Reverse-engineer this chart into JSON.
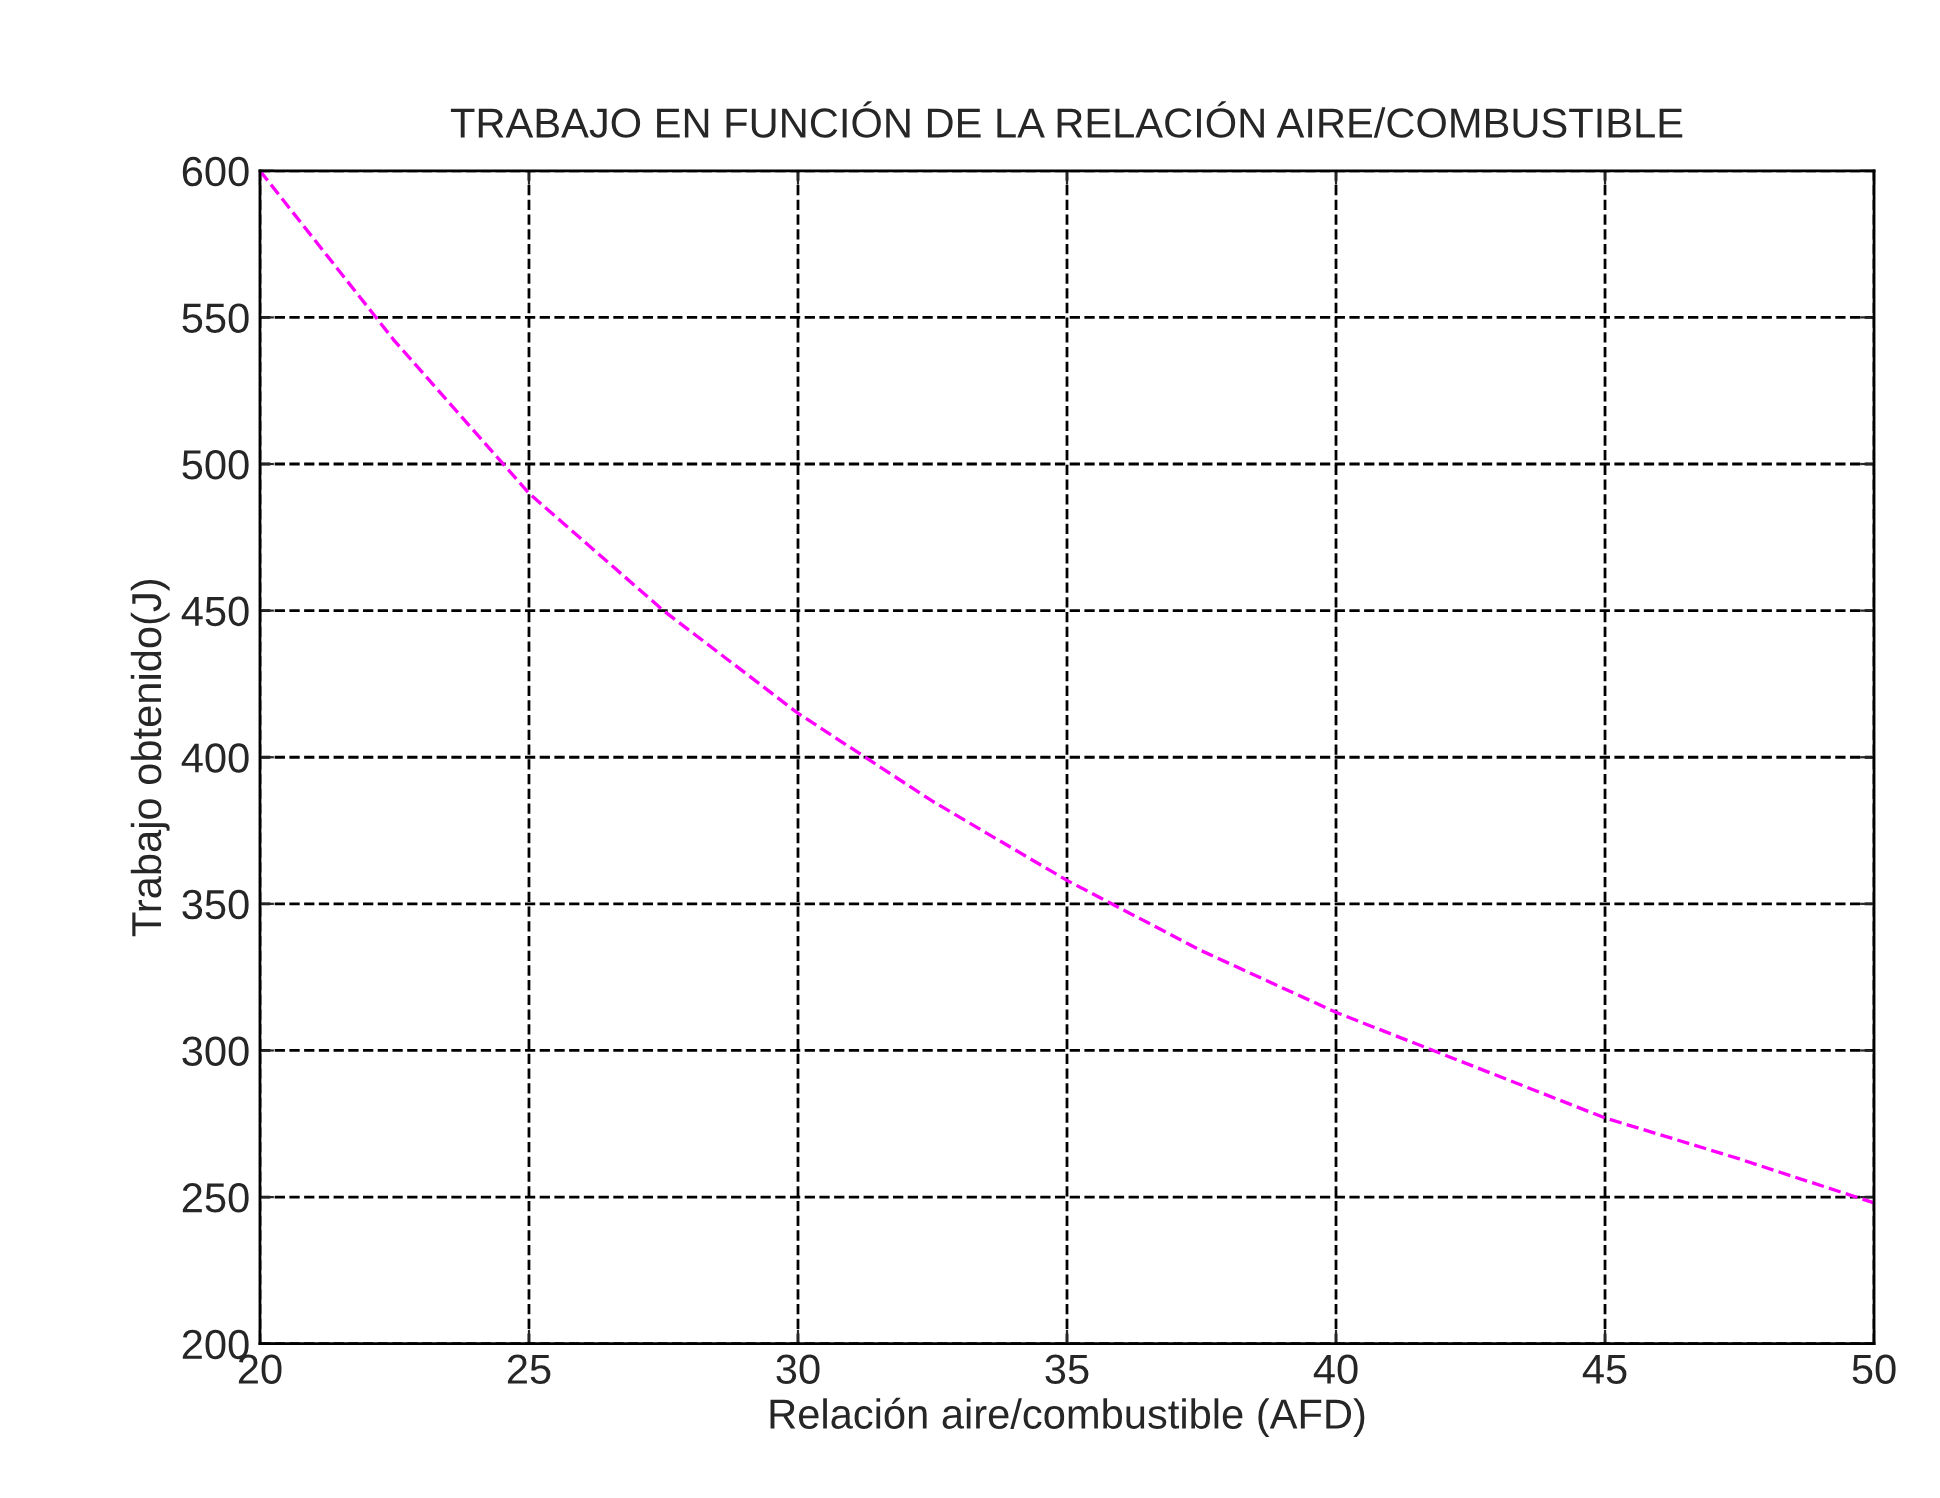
{
  "chart_data": {
    "type": "line",
    "title": "TRABAJO EN FUNCIÓN DE LA RELACIÓN AIRE/COMBUSTIBLE",
    "xlabel": "Relación aire/combustible (AFD)",
    "ylabel": "Trabajo obtenido(J)",
    "x": [
      20,
      22.5,
      25,
      27.5,
      30,
      32.5,
      35,
      37.5,
      40,
      42.5,
      45,
      47.5,
      50
    ],
    "series": [
      {
        "color": "#ff00ff",
        "values": [
          600,
          542,
          490,
          450,
          415,
          385,
          358,
          334,
          313,
          295,
          277,
          263,
          248
        ]
      }
    ],
    "xlim": [
      20,
      50
    ],
    "xticks": [
      20,
      25,
      30,
      35,
      40,
      45,
      50
    ],
    "ylim": [
      200,
      600
    ],
    "yticks": [
      200,
      250,
      300,
      350,
      400,
      450,
      500,
      550,
      600
    ],
    "grid": true,
    "line_style": "dashed",
    "marker": "none"
  }
}
